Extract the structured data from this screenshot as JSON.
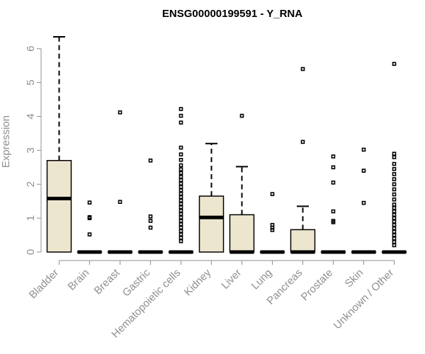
{
  "chart_data": {
    "type": "box",
    "title": "ENSG00000199591 - Y_RNA",
    "xlabel": "",
    "ylabel": "Expression",
    "ylim": [
      0,
      6.6
    ],
    "yticks": [
      0,
      1,
      2,
      3,
      4,
      5,
      6
    ],
    "box_color": "#ede6cf",
    "categories": [
      "Bladder",
      "Brain",
      "Breast",
      "Gastric",
      "Hematopoietic cells",
      "Kidney",
      "Liver",
      "Lung",
      "Pancreas",
      "Prostate",
      "Skin",
      "Unknown / Other"
    ],
    "boxes": [
      {
        "q1": 0,
        "median": 1.58,
        "q3": 2.7,
        "whisker_low": 0,
        "whisker_high": 6.35,
        "outliers": []
      },
      {
        "q1": 0,
        "median": 0,
        "q3": 0,
        "whisker_low": 0,
        "whisker_high": 0,
        "outliers": [
          1.46,
          1.03,
          1.0,
          0.52
        ]
      },
      {
        "q1": 0,
        "median": 0,
        "q3": 0,
        "whisker_low": 0,
        "whisker_high": 0,
        "outliers": [
          4.12,
          1.48
        ]
      },
      {
        "q1": 0,
        "median": 0,
        "q3": 0,
        "whisker_low": 0,
        "whisker_high": 0,
        "outliers": [
          2.7,
          1.05,
          0.92,
          0.72
        ]
      },
      {
        "q1": 0,
        "median": 0,
        "q3": 0,
        "whisker_low": 0,
        "whisker_high": 0,
        "outliers": [
          4.22,
          4.02,
          3.82,
          3.08,
          2.88,
          2.72,
          2.56,
          2.44,
          2.33,
          2.22,
          2.12,
          2.02,
          1.92,
          1.82,
          1.72,
          1.62,
          1.52,
          1.42,
          1.32,
          1.22,
          1.12,
          1.02,
          0.92,
          0.82,
          0.72,
          0.62,
          0.52,
          0.42,
          0.32
        ]
      },
      {
        "q1": 0,
        "median": 1.02,
        "q3": 1.65,
        "whisker_low": 0,
        "whisker_high": 3.2,
        "outliers": []
      },
      {
        "q1": 0,
        "median": 0,
        "q3": 1.1,
        "whisker_low": 0,
        "whisker_high": 2.52,
        "outliers": [
          4.02
        ]
      },
      {
        "q1": 0,
        "median": 0,
        "q3": 0,
        "whisker_low": 0,
        "whisker_high": 0,
        "outliers": [
          1.71,
          0.8,
          0.72,
          0.65
        ]
      },
      {
        "q1": 0,
        "median": 0,
        "q3": 0.66,
        "whisker_low": 0,
        "whisker_high": 1.35,
        "outliers": [
          5.4,
          3.25
        ]
      },
      {
        "q1": 0,
        "median": 0,
        "q3": 0,
        "whisker_low": 0,
        "whisker_high": 0,
        "outliers": [
          2.82,
          2.5,
          2.05,
          1.2,
          0.92,
          0.88
        ]
      },
      {
        "q1": 0,
        "median": 0,
        "q3": 0,
        "whisker_low": 0,
        "whisker_high": 0,
        "outliers": [
          3.02,
          2.4,
          1.45
        ]
      },
      {
        "q1": 0,
        "median": 0,
        "q3": 0,
        "whisker_low": 0,
        "whisker_high": 0,
        "outliers": [
          5.55,
          2.9,
          2.8,
          2.6,
          2.45,
          2.3,
          2.15,
          2.0,
          1.85,
          1.7,
          1.55,
          1.4,
          1.3,
          1.2,
          1.1,
          1.0,
          0.9,
          0.8,
          0.7,
          0.6,
          0.5,
          0.4,
          0.3,
          0.2
        ]
      }
    ]
  }
}
